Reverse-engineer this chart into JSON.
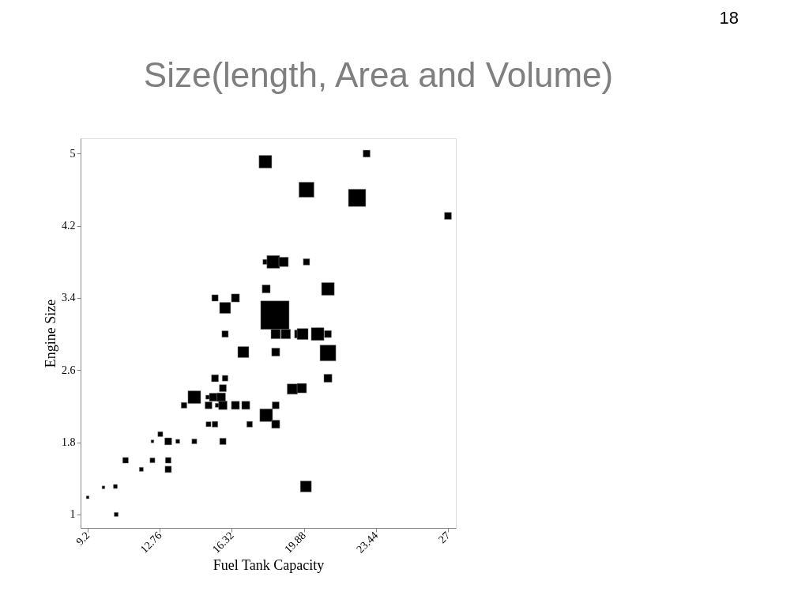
{
  "chart_data": {
    "type": "bubble",
    "title": "Size(length, Area and Volume)",
    "xlabel": "Fuel Tank Capacity",
    "ylabel": "Engine Size",
    "annotations": [
      "18"
    ],
    "marker": "square",
    "grid": false,
    "legend": false,
    "xlim": [
      8.85,
      27.39
    ],
    "ylim": [
      0.85,
      5.17
    ],
    "xticks": [
      9.2,
      12.76,
      16.32,
      19.88,
      23.44,
      27
    ],
    "yticks": [
      1,
      1.8,
      2.6,
      3.4,
      4.2,
      5
    ],
    "series": [
      {
        "color": "#000000",
        "x": [
          17.98,
          22.98,
          20.01,
          22.51,
          27.0,
          17.98,
          18.37,
          18.88,
          20.01,
          18.02,
          21.07,
          15.49,
          16.5,
          15.99,
          18.45,
          15.99,
          18.49,
          18.99,
          19.62,
          19.82,
          20.56,
          21.07,
          16.89,
          18.49,
          21.07,
          15.49,
          15.99,
          21.07,
          15.88,
          19.31,
          19.78,
          14.47,
          15.13,
          15.41,
          15.8,
          13.96,
          15.17,
          15.6,
          15.88,
          16.5,
          17.01,
          18.49,
          18.02,
          15.17,
          15.49,
          17.2,
          18.49,
          12.79,
          12.4,
          13.18,
          13.65,
          14.47,
          15.88,
          11.07,
          12.4,
          13.18,
          11.85,
          13.18,
          9.98,
          10.57,
          19.98,
          9.2,
          10.61
        ],
        "values": [
          4.91,
          5.0,
          4.6,
          4.51,
          4.31,
          3.8,
          3.8,
          3.8,
          3.8,
          3.5,
          3.5,
          3.4,
          3.4,
          3.29,
          3.21,
          3.0,
          3.0,
          3.0,
          3.0,
          3.0,
          3.0,
          3.0,
          2.8,
          2.8,
          2.79,
          2.51,
          2.51,
          2.51,
          2.4,
          2.39,
          2.4,
          2.3,
          2.3,
          2.3,
          2.3,
          2.21,
          2.21,
          2.21,
          2.21,
          2.21,
          2.21,
          2.21,
          2.1,
          2.0,
          2.0,
          2.0,
          2.0,
          1.89,
          1.81,
          1.81,
          1.81,
          1.81,
          1.81,
          1.6,
          1.6,
          1.6,
          1.5,
          1.5,
          1.3,
          1.31,
          1.31,
          1.19,
          1.0
        ],
        "sizes": [
          0.2,
          0.06,
          0.28,
          0.37,
          0.06,
          0.03,
          0.2,
          0.11,
          0.05,
          0.08,
          0.2,
          0.05,
          0.08,
          0.15,
          1,
          0.05,
          0.11,
          0.11,
          0.08,
          0.15,
          0.2,
          0.06,
          0.15,
          0.08,
          0.31,
          0.06,
          0.04,
          0.08,
          0.06,
          0.13,
          0.11,
          0.2,
          0.02,
          0.08,
          0.09,
          0.04,
          0.06,
          0.02,
          0.09,
          0.08,
          0.08,
          0.06,
          0.2,
          0.03,
          0.04,
          0.04,
          0.08,
          0.03,
          0.01,
          0.06,
          0.02,
          0.03,
          0.05,
          0.04,
          0.03,
          0.04,
          0.02,
          0.05,
          0.01,
          0.02,
          0.15,
          0.01,
          0.02
        ]
      }
    ]
  }
}
